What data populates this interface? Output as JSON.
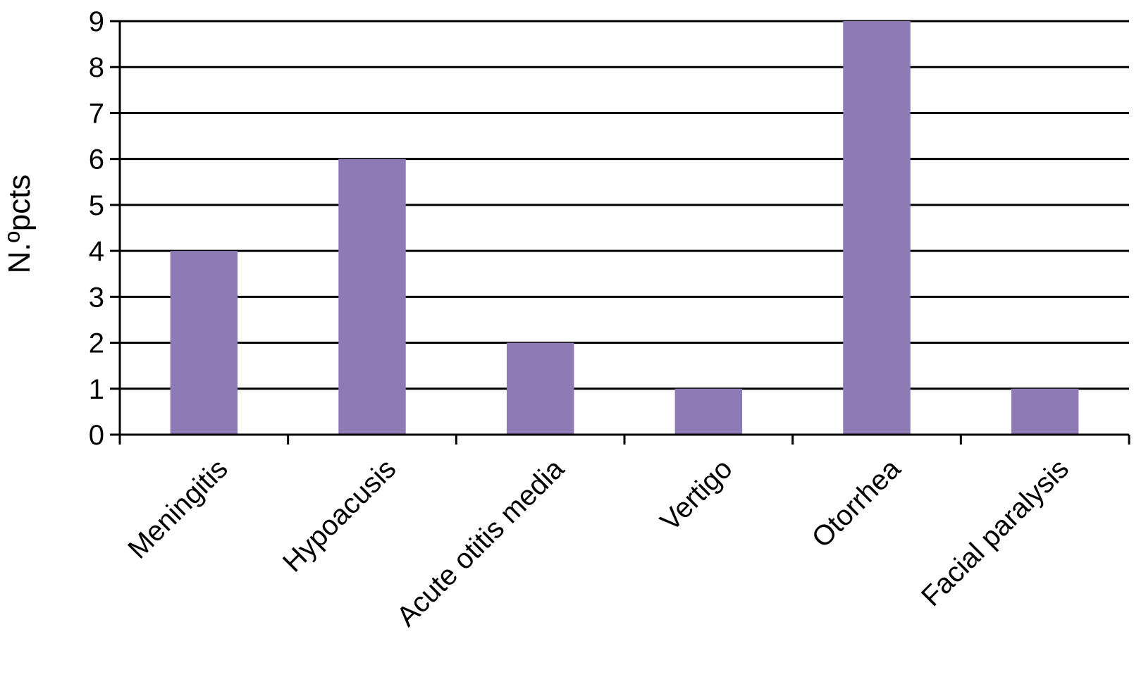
{
  "chart_data": {
    "type": "bar",
    "title": "",
    "xlabel": "",
    "ylabel": "N.ºpcts",
    "categories": [
      "Meningitis",
      "Hypoacusis",
      "Acute otitis media",
      "Vertigo",
      "Otorrhea",
      "Facial paralysis"
    ],
    "values": [
      4,
      6,
      2,
      1,
      9,
      1
    ],
    "ylim": [
      0,
      9
    ],
    "yticks": [
      "0",
      "1",
      "2",
      "3",
      "4",
      "5",
      "6",
      "7",
      "8",
      "9"
    ],
    "grid": true,
    "legend": "none",
    "bar_color": "#8e7bb5"
  }
}
